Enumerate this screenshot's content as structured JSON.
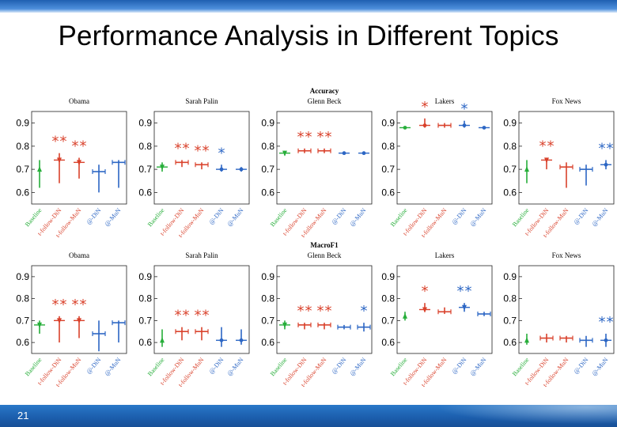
{
  "slide": {
    "title": "Performance Analysis in Different Topics",
    "page_number": "21"
  },
  "colors": {
    "baseline": "#27ae3a",
    "follow": "#d9412b",
    "at": "#2c66c4",
    "bar_top": "#2f6fc2",
    "bar_bottom": "#1c5fae"
  },
  "chart_data": {
    "type": "errorbar",
    "categories": [
      "Baseline",
      "t-follow-DiN",
      "t-follow-MuN",
      "@-DiN",
      "@-MuN"
    ],
    "category_groups": [
      "baseline",
      "follow",
      "follow",
      "at",
      "at"
    ],
    "rows": [
      {
        "metric": "Accuracy",
        "header": "Accuracy",
        "charts": [
          {
            "topic": "Obama",
            "ylim": [
              0.55,
              0.95
            ],
            "yticks": [
              "0.9",
              "0.8",
              "0.7",
              "0.6"
            ],
            "points": [
              {
                "y": 0.7,
                "lo": 0.62,
                "hi": 0.74,
                "stars": 0,
                "marker": "up"
              },
              {
                "y": 0.74,
                "lo": 0.64,
                "hi": 0.77,
                "stars": 2,
                "marker": "down"
              },
              {
                "y": 0.73,
                "lo": 0.66,
                "hi": 0.75,
                "stars": 2,
                "marker": "down"
              },
              {
                "y": 0.69,
                "lo": 0.6,
                "hi": 0.72,
                "stars": 0,
                "marker": "bar"
              },
              {
                "y": 0.73,
                "lo": 0.62,
                "hi": 0.74,
                "stars": 0,
                "marker": "bar"
              }
            ]
          },
          {
            "topic": "Sarah Palin",
            "ylim": [
              0.55,
              0.95
            ],
            "yticks": [
              "0.9",
              "0.8",
              "0.7",
              "0.6"
            ],
            "points": [
              {
                "y": 0.71,
                "lo": 0.69,
                "hi": 0.73,
                "stars": 0,
                "marker": "down"
              },
              {
                "y": 0.73,
                "lo": 0.71,
                "hi": 0.74,
                "stars": 2,
                "marker": "bar"
              },
              {
                "y": 0.72,
                "lo": 0.7,
                "hi": 0.73,
                "stars": 2,
                "marker": "bar"
              },
              {
                "y": 0.7,
                "lo": 0.69,
                "hi": 0.72,
                "stars": 1,
                "marker": "dot"
              },
              {
                "y": 0.7,
                "lo": 0.69,
                "hi": 0.71,
                "stars": 0,
                "marker": "dot"
              }
            ]
          },
          {
            "topic": "Glenn Beck",
            "ylim": [
              0.55,
              0.95
            ],
            "yticks": [
              "0.9",
              "0.8",
              "0.7",
              "0.6"
            ],
            "points": [
              {
                "y": 0.77,
                "lo": 0.76,
                "hi": 0.78,
                "stars": 0,
                "marker": "down"
              },
              {
                "y": 0.78,
                "lo": 0.77,
                "hi": 0.79,
                "stars": 2,
                "marker": "bar"
              },
              {
                "y": 0.78,
                "lo": 0.77,
                "hi": 0.79,
                "stars": 2,
                "marker": "bar"
              },
              {
                "y": 0.77,
                "lo": 0.765,
                "hi": 0.775,
                "stars": 0,
                "marker": "dot"
              },
              {
                "y": 0.77,
                "lo": 0.765,
                "hi": 0.775,
                "stars": 0,
                "marker": "dot"
              }
            ]
          },
          {
            "topic": "Lakers",
            "ylim": [
              0.55,
              0.95
            ],
            "yticks": [
              "0.9",
              "0.8",
              "0.7",
              "0.6"
            ],
            "points": [
              {
                "y": 0.88,
                "lo": 0.875,
                "hi": 0.885,
                "stars": 0,
                "marker": "dot"
              },
              {
                "y": 0.89,
                "lo": 0.88,
                "hi": 0.92,
                "stars": 1,
                "marker": "dot"
              },
              {
                "y": 0.89,
                "lo": 0.88,
                "hi": 0.9,
                "stars": 0,
                "marker": "bar"
              },
              {
                "y": 0.89,
                "lo": 0.88,
                "hi": 0.91,
                "stars": 1,
                "marker": "dot"
              },
              {
                "y": 0.88,
                "lo": 0.875,
                "hi": 0.885,
                "stars": 0,
                "marker": "dot"
              }
            ]
          },
          {
            "topic": "Fox News",
            "ylim": [
              0.55,
              0.95
            ],
            "yticks": [
              "0.9",
              "0.8",
              "0.7",
              "0.6"
            ],
            "points": [
              {
                "y": 0.7,
                "lo": 0.64,
                "hi": 0.74,
                "stars": 0,
                "marker": "up"
              },
              {
                "y": 0.74,
                "lo": 0.7,
                "hi": 0.75,
                "stars": 2,
                "marker": "down"
              },
              {
                "y": 0.71,
                "lo": 0.62,
                "hi": 0.73,
                "stars": 0,
                "marker": "bar"
              },
              {
                "y": 0.7,
                "lo": 0.63,
                "hi": 0.72,
                "stars": 0,
                "marker": "bar"
              },
              {
                "y": 0.72,
                "lo": 0.7,
                "hi": 0.74,
                "stars": 2,
                "marker": "dot"
              }
            ]
          }
        ]
      },
      {
        "metric": "MacroF1",
        "header": "MacroF1",
        "charts": [
          {
            "topic": "Obama",
            "ylim": [
              0.55,
              0.95
            ],
            "yticks": [
              "0.9",
              "0.8",
              "0.7",
              "0.6"
            ],
            "points": [
              {
                "y": 0.68,
                "lo": 0.64,
                "hi": 0.7,
                "stars": 0,
                "marker": "down"
              },
              {
                "y": 0.7,
                "lo": 0.6,
                "hi": 0.72,
                "stars": 2,
                "marker": "down"
              },
              {
                "y": 0.7,
                "lo": 0.62,
                "hi": 0.72,
                "stars": 2,
                "marker": "down"
              },
              {
                "y": 0.64,
                "lo": 0.56,
                "hi": 0.7,
                "stars": 0,
                "marker": "bar"
              },
              {
                "y": 0.69,
                "lo": 0.6,
                "hi": 0.7,
                "stars": 0,
                "marker": "bar"
              }
            ]
          },
          {
            "topic": "Sarah Palin",
            "ylim": [
              0.55,
              0.95
            ],
            "yticks": [
              "0.9",
              "0.8",
              "0.7",
              "0.6"
            ],
            "points": [
              {
                "y": 0.61,
                "lo": 0.58,
                "hi": 0.66,
                "stars": 0,
                "marker": "up"
              },
              {
                "y": 0.65,
                "lo": 0.61,
                "hi": 0.67,
                "stars": 2,
                "marker": "bar"
              },
              {
                "y": 0.65,
                "lo": 0.61,
                "hi": 0.67,
                "stars": 2,
                "marker": "bar"
              },
              {
                "y": 0.61,
                "lo": 0.58,
                "hi": 0.67,
                "stars": 0,
                "marker": "dot"
              },
              {
                "y": 0.61,
                "lo": 0.59,
                "hi": 0.66,
                "stars": 0,
                "marker": "dot"
              }
            ]
          },
          {
            "topic": "Glenn Beck",
            "ylim": [
              0.55,
              0.95
            ],
            "yticks": [
              "0.9",
              "0.8",
              "0.7",
              "0.6"
            ],
            "points": [
              {
                "y": 0.68,
                "lo": 0.66,
                "hi": 0.7,
                "stars": 0,
                "marker": "down"
              },
              {
                "y": 0.68,
                "lo": 0.66,
                "hi": 0.69,
                "stars": 2,
                "marker": "bar"
              },
              {
                "y": 0.68,
                "lo": 0.66,
                "hi": 0.69,
                "stars": 2,
                "marker": "bar"
              },
              {
                "y": 0.67,
                "lo": 0.66,
                "hi": 0.68,
                "stars": 0,
                "marker": "bar"
              },
              {
                "y": 0.67,
                "lo": 0.65,
                "hi": 0.69,
                "stars": 1,
                "marker": "bar"
              }
            ]
          },
          {
            "topic": "Lakers",
            "ylim": [
              0.55,
              0.95
            ],
            "yticks": [
              "0.9",
              "0.8",
              "0.7",
              "0.6"
            ],
            "points": [
              {
                "y": 0.72,
                "lo": 0.7,
                "hi": 0.74,
                "stars": 0,
                "marker": "up"
              },
              {
                "y": 0.75,
                "lo": 0.74,
                "hi": 0.78,
                "stars": 1,
                "marker": "down"
              },
              {
                "y": 0.74,
                "lo": 0.73,
                "hi": 0.76,
                "stars": 0,
                "marker": "bar"
              },
              {
                "y": 0.76,
                "lo": 0.74,
                "hi": 0.78,
                "stars": 2,
                "marker": "down"
              },
              {
                "y": 0.73,
                "lo": 0.72,
                "hi": 0.74,
                "stars": 0,
                "marker": "bar"
              }
            ]
          },
          {
            "topic": "Fox News",
            "ylim": [
              0.55,
              0.95
            ],
            "yticks": [
              "0.9",
              "0.8",
              "0.7",
              "0.6"
            ],
            "points": [
              {
                "y": 0.61,
                "lo": 0.59,
                "hi": 0.64,
                "stars": 0,
                "marker": "up"
              },
              {
                "y": 0.62,
                "lo": 0.6,
                "hi": 0.64,
                "stars": 0,
                "marker": "bar"
              },
              {
                "y": 0.62,
                "lo": 0.6,
                "hi": 0.63,
                "stars": 0,
                "marker": "bar"
              },
              {
                "y": 0.61,
                "lo": 0.58,
                "hi": 0.63,
                "stars": 0,
                "marker": "bar"
              },
              {
                "y": 0.61,
                "lo": 0.58,
                "hi": 0.64,
                "stars": 2,
                "marker": "dot"
              }
            ]
          }
        ]
      }
    ]
  }
}
